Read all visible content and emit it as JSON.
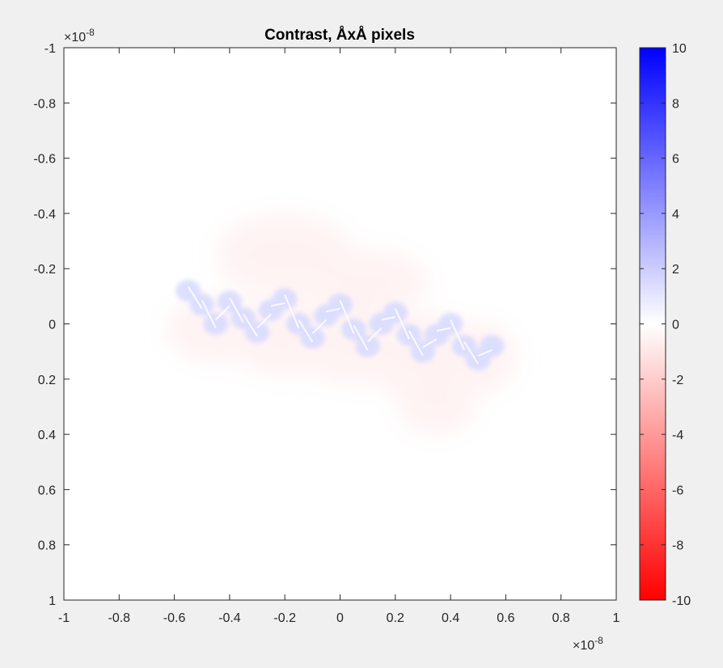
{
  "chart_data": {
    "type": "heatmap",
    "title": "Contrast, ÅxÅ pixels",
    "xlabel": "",
    "ylabel": "",
    "xlim": [
      -1,
      1
    ],
    "ylim": [
      -1,
      1
    ],
    "y_reversed": true,
    "x_multiplier": {
      "base": "×10",
      "exponent": "-8"
    },
    "y_multiplier": {
      "base": "×10",
      "exponent": "-8"
    },
    "x_ticks": [
      "-1",
      "-0.8",
      "-0.6",
      "-0.4",
      "-0.2",
      "0",
      "0.2",
      "0.4",
      "0.6",
      "0.8",
      "1"
    ],
    "y_ticks": [
      "-1",
      "-0.8",
      "-0.6",
      "-0.4",
      "-0.2",
      "0",
      "0.2",
      "0.4",
      "0.6",
      "0.8",
      "1"
    ],
    "colorbar": {
      "colormap": "red-white-blue",
      "low_color": "#ff0000",
      "mid_color": "#ffffff",
      "high_color": "#0000ff",
      "clim": [
        -10,
        10
      ],
      "ticks": [
        "-10",
        "-8",
        "-6",
        "-4",
        "-2",
        "0",
        "2",
        "4",
        "6",
        "8",
        "10"
      ]
    },
    "features": [
      {
        "kind": "molecule-core",
        "x": 0.0,
        "y": 0.05,
        "value": 1.2
      },
      {
        "kind": "red-halo",
        "x": 0.05,
        "y": 0.1,
        "value": -0.3
      }
    ]
  }
}
